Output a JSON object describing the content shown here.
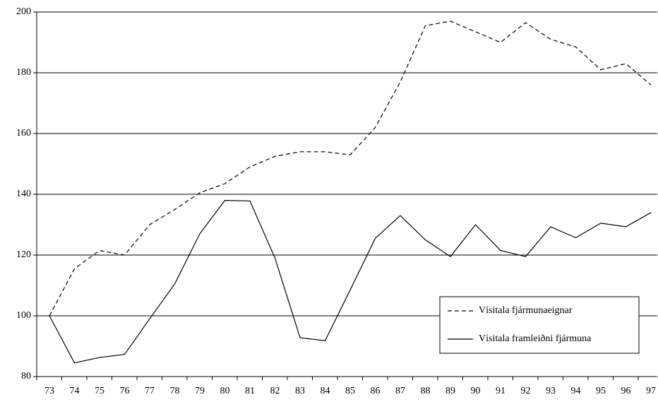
{
  "chart_data": {
    "type": "line",
    "categories": [
      "73",
      "74",
      "75",
      "76",
      "77",
      "78",
      "79",
      "80",
      "81",
      "82",
      "83",
      "84",
      "85",
      "86",
      "87",
      "88",
      "89",
      "90",
      "91",
      "92",
      "93",
      "94",
      "95",
      "96",
      "97"
    ],
    "series": [
      {
        "name": "Vísitala fjármunaeignar",
        "color": "#000000",
        "dash": true,
        "values": [
          100,
          115.5,
          121.5,
          120,
          130,
          135,
          140.5,
          143.5,
          149,
          152.5,
          154,
          154,
          153,
          162,
          177,
          195.5,
          197,
          193.5,
          190,
          196.5,
          191,
          188.5,
          181,
          183,
          176
        ]
      },
      {
        "name": "Vísitala framleiðni fjármuna",
        "color": "#000000",
        "dash": false,
        "values": [
          100,
          84.5,
          86.3,
          87.3,
          99,
          110.5,
          127,
          138,
          137.8,
          119,
          92.8,
          91.8,
          108.5,
          125.5,
          133,
          125,
          119.5,
          130,
          121.5,
          119.5,
          129.3,
          125.7,
          130.5,
          129.3,
          134
        ]
      }
    ],
    "ylim": [
      80,
      200
    ],
    "yticks": [
      80,
      100,
      120,
      140,
      160,
      180,
      200
    ],
    "grid": true
  }
}
